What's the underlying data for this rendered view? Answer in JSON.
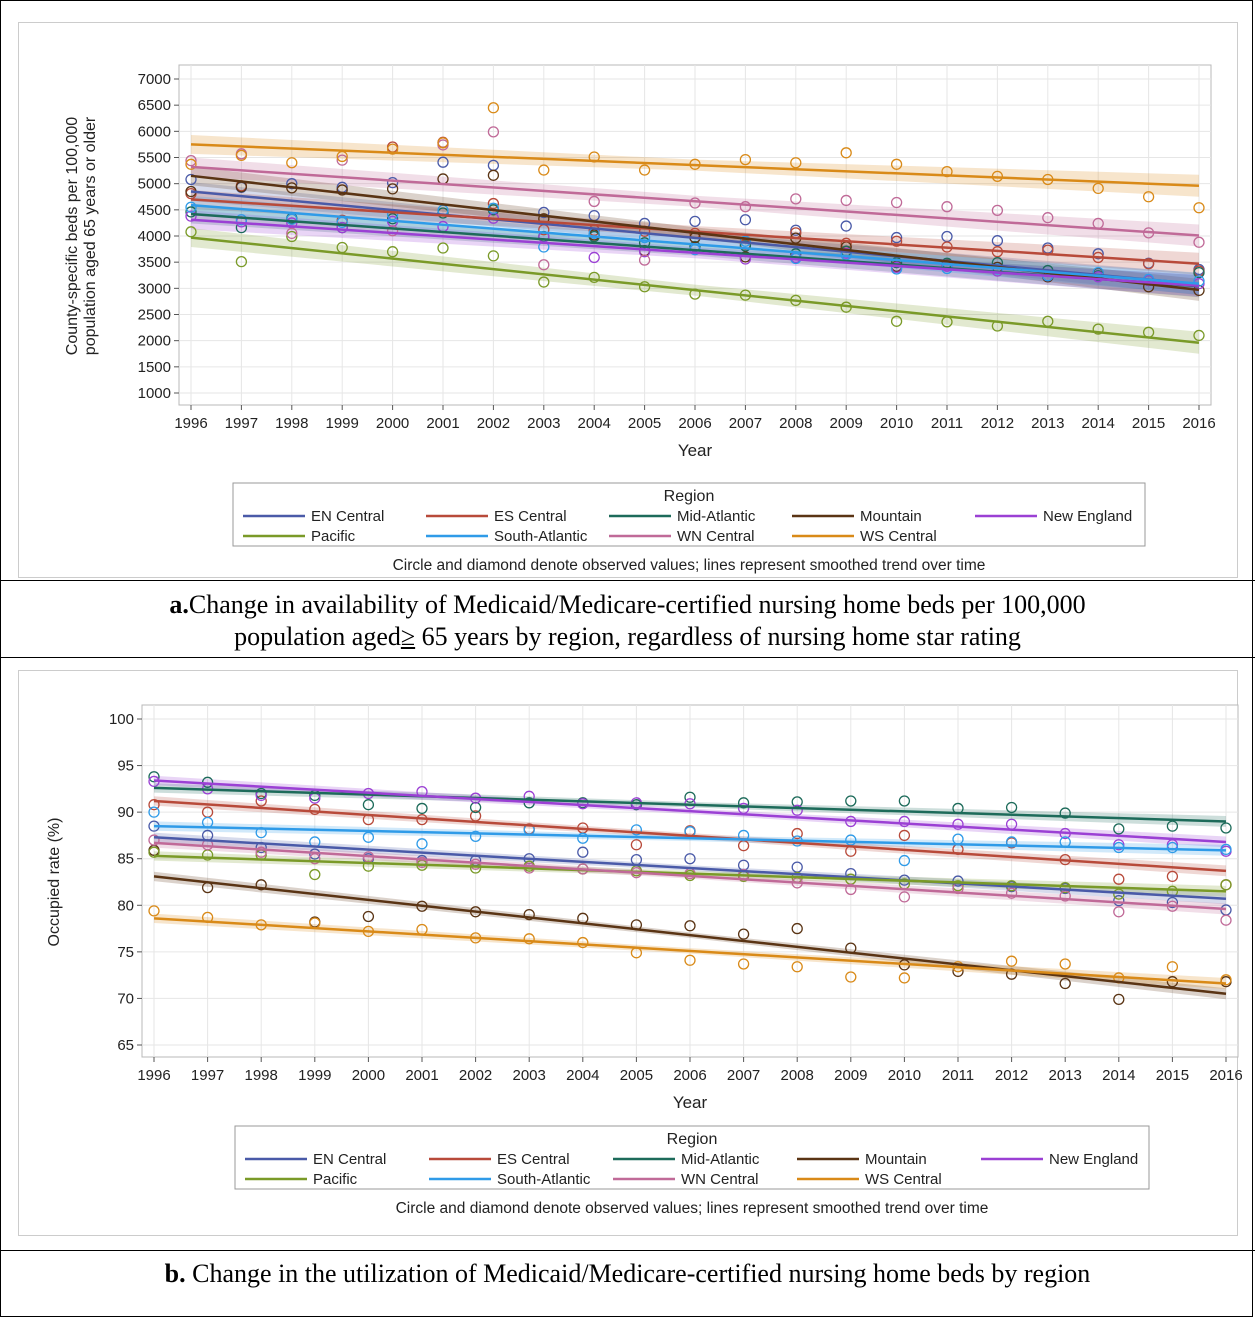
{
  "chart_data": [
    {
      "type": "scatter",
      "xlabel": "Year",
      "ylabel_line1": "County-specific beds per 100,000",
      "ylabel_line2": "population aged 65 years or older",
      "ylim": [
        1000,
        7000
      ],
      "yticks": [
        1000,
        1500,
        2000,
        2500,
        3000,
        3500,
        4000,
        4500,
        5000,
        5500,
        6000,
        6500,
        7000
      ],
      "xticks": [
        1996,
        1997,
        1998,
        1999,
        2000,
        2001,
        2002,
        2003,
        2004,
        2005,
        2006,
        2007,
        2008,
        2009,
        2010,
        2011,
        2012,
        2013,
        2014,
        2015,
        2016
      ],
      "grid": true,
      "legend_title": "Region",
      "legend_position": "bottom",
      "footnote": "Circle and diamond denote observed values; lines represent smoothed trend over time",
      "caption_bold": "a.",
      "caption_text": "Change in availability of Medicaid/Medicare-certified nursing home beds per 100,000",
      "caption_line2_a": "population aged",
      "caption_line2_sym": "≥",
      "caption_line2_b": " 65 years by region, regardless of nursing home star rating",
      "series": [
        {
          "name": "EN Central",
          "color": "#4a5aa8",
          "trend": [
            4850,
            3080
          ],
          "points": [
            5080,
            4930,
            5000,
            4930,
            5020,
            5410,
            5350,
            4450,
            4390,
            4240,
            4280,
            4310,
            4110,
            4190,
            3970,
            3990,
            3910,
            3770,
            3660,
            3480,
            3360
          ]
        },
        {
          "name": "ES Central",
          "color": "#b84a3a",
          "trend": [
            4700,
            3470
          ],
          "points": [
            4810,
            4960,
            4320,
            4300,
            5700,
            5790,
            4620,
            4120,
            4110,
            4090,
            4050,
            3840,
            4060,
            3860,
            3900,
            3790,
            3700,
            3730,
            3590,
            3470,
            3330
          ]
        },
        {
          "name": "Mid-Atlantic",
          "color": "#1d6b5a",
          "trend": [
            4420,
            3040
          ],
          "points": [
            4460,
            4160,
            4340,
            4160,
            4330,
            4440,
            4500,
            3990,
            3990,
            3870,
            3800,
            3810,
            3660,
            3710,
            3490,
            3480,
            3490,
            3340,
            3240,
            3150,
            3300
          ]
        },
        {
          "name": "Mountain",
          "color": "#5a3414",
          "trend": [
            5150,
            2970
          ],
          "points": [
            4850,
            4940,
            4920,
            4880,
            4900,
            5090,
            5160,
            4330,
            4020,
            3720,
            3970,
            3600,
            3960,
            3790,
            3420,
            3450,
            3400,
            3220,
            3290,
            3030,
            2960
          ]
        },
        {
          "name": "New England",
          "color": "#9b40d4",
          "trend": [
            4310,
            3050
          ],
          "points": [
            4380,
            4270,
            4250,
            4160,
            4280,
            4180,
            4340,
            3980,
            3590,
            3700,
            3740,
            3560,
            3590,
            3670,
            3400,
            3420,
            3330,
            3240,
            3220,
            3150,
            3090
          ]
        },
        {
          "name": "Pacific",
          "color": "#7a9a28",
          "trend": [
            3970,
            1960
          ],
          "points": [
            4080,
            3510,
            3990,
            3780,
            3700,
            3770,
            3620,
            3120,
            3210,
            3030,
            2890,
            2870,
            2770,
            2640,
            2370,
            2360,
            2280,
            2370,
            2220,
            2160,
            2100
          ]
        },
        {
          "name": "South-Atlantic",
          "color": "#2f9be8",
          "trend": [
            4590,
            3090
          ],
          "points": [
            4550,
            4310,
            4320,
            4260,
            4410,
            4490,
            4530,
            3790,
            4050,
            3970,
            3740,
            3900,
            3570,
            3640,
            3370,
            3380,
            3370,
            3240,
            3300,
            3170,
            3140
          ]
        },
        {
          "name": "WN Central",
          "color": "#c06a98",
          "trend": [
            5320,
            4010
          ],
          "points": [
            5440,
            5570,
            4050,
            5450,
            4100,
            5740,
            5990,
            3450,
            4660,
            3540,
            4630,
            4560,
            4710,
            4680,
            4640,
            4560,
            4490,
            4350,
            4240,
            4060,
            3880
          ]
        },
        {
          "name": "WS Central",
          "color": "#d98a18",
          "trend": [
            5750,
            4960
          ],
          "points": [
            5370,
            5540,
            5400,
            5520,
            5660,
            5780,
            6450,
            5260,
            5510,
            5260,
            5370,
            5460,
            5400,
            5590,
            5370,
            5230,
            5140,
            5080,
            4910,
            4750,
            4540
          ]
        }
      ]
    },
    {
      "type": "scatter",
      "xlabel": "Year",
      "ylabel": "Occupied rate (%)",
      "ylim": [
        65,
        100
      ],
      "yticks": [
        65,
        70,
        75,
        80,
        85,
        90,
        95,
        100
      ],
      "xticks": [
        1996,
        1997,
        1998,
        1999,
        2000,
        2001,
        2002,
        2003,
        2004,
        2005,
        2006,
        2007,
        2008,
        2009,
        2010,
        2011,
        2012,
        2013,
        2014,
        2015,
        2016
      ],
      "grid": true,
      "legend_title": "Region",
      "legend_position": "bottom",
      "footnote": "Circle and diamond denote observed values; lines represent smoothed trend over time",
      "caption_bold": "b.",
      "caption_text": " Change in the utilization of Medicaid/Medicare-certified nursing home beds by region",
      "series": [
        {
          "name": "EN Central",
          "color": "#4a5aa8",
          "trend": [
            87.3,
            80.7
          ],
          "points": [
            88.5,
            87.5,
            86.2,
            85.5,
            85.0,
            84.8,
            84.8,
            85.0,
            85.7,
            84.9,
            85.0,
            84.3,
            84.1,
            83.4,
            82.7,
            82.6,
            82.0,
            81.8,
            80.5,
            80.3,
            79.5
          ]
        },
        {
          "name": "ES Central",
          "color": "#b84a3a",
          "trend": [
            91.2,
            83.7
          ],
          "points": [
            90.8,
            90.0,
            91.2,
            90.3,
            89.2,
            89.2,
            89.6,
            88.2,
            88.3,
            86.5,
            88.0,
            86.4,
            87.7,
            85.8,
            87.5,
            86.0,
            86.7,
            84.9,
            82.8,
            83.1,
            82.2
          ]
        },
        {
          "name": "Mid-Atlantic",
          "color": "#1d6b5a",
          "trend": [
            92.6,
            89.0
          ],
          "points": [
            93.8,
            93.2,
            92.0,
            91.8,
            90.8,
            90.4,
            90.5,
            91.0,
            91.0,
            90.8,
            91.6,
            91.0,
            91.1,
            91.2,
            91.2,
            90.4,
            90.5,
            89.9,
            88.2,
            88.5,
            88.3
          ]
        },
        {
          "name": "Mountain",
          "color": "#5a3414",
          "trend": [
            83.1,
            70.5
          ],
          "points": [
            85.9,
            81.9,
            82.2,
            78.2,
            78.8,
            79.9,
            79.3,
            79.0,
            78.6,
            77.9,
            77.8,
            76.9,
            77.5,
            75.4,
            73.6,
            72.9,
            72.6,
            71.6,
            69.9,
            71.8,
            71.8
          ]
        },
        {
          "name": "New England",
          "color": "#9b40d4",
          "trend": [
            93.4,
            86.8
          ],
          "points": [
            93.3,
            92.5,
            91.8,
            91.5,
            92.0,
            92.2,
            91.5,
            91.7,
            90.9,
            91.0,
            90.9,
            90.4,
            90.2,
            89.0,
            89.0,
            88.7,
            88.7,
            87.7,
            86.5,
            86.5,
            85.8
          ]
        },
        {
          "name": "Pacific",
          "color": "#7a9a28",
          "trend": [
            85.3,
            81.5
          ],
          "points": [
            85.7,
            85.4,
            85.4,
            83.3,
            84.2,
            84.3,
            84.0,
            84.2,
            83.9,
            83.7,
            83.2,
            83.1,
            83.0,
            82.8,
            82.3,
            82.1,
            82.1,
            81.9,
            81.2,
            81.5,
            82.2
          ]
        },
        {
          "name": "South-Atlantic",
          "color": "#2f9be8",
          "trend": [
            88.5,
            85.9
          ],
          "points": [
            90.0,
            88.9,
            87.8,
            86.8,
            87.3,
            86.6,
            87.4,
            88.1,
            87.2,
            88.1,
            87.9,
            87.5,
            86.9,
            87.0,
            84.8,
            87.1,
            86.8,
            86.8,
            86.2,
            86.2,
            86.0
          ]
        },
        {
          "name": "WN Central",
          "color": "#c06a98",
          "trend": [
            86.7,
            79.6
          ],
          "points": [
            87.0,
            86.5,
            85.7,
            85.0,
            85.2,
            84.6,
            84.4,
            84.0,
            83.9,
            83.5,
            83.4,
            83.3,
            82.4,
            81.7,
            80.9,
            81.8,
            81.3,
            81.0,
            79.3,
            79.9,
            78.4
          ]
        },
        {
          "name": "WS Central",
          "color": "#d98a18",
          "trend": [
            78.6,
            71.6
          ],
          "points": [
            79.4,
            78.7,
            77.9,
            78.1,
            77.2,
            77.4,
            76.5,
            76.4,
            76.0,
            74.9,
            74.1,
            73.7,
            73.4,
            72.3,
            72.2,
            73.4,
            74.0,
            73.7,
            72.2,
            73.4,
            72.0
          ]
        }
      ]
    }
  ]
}
